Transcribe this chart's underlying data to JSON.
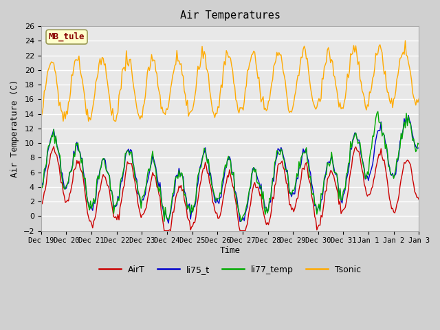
{
  "title": "Air Temperatures",
  "ylabel": "Air Temperature (C)",
  "xlabel": "Time",
  "ylim": [
    -2,
    26
  ],
  "yticks": [
    -2,
    0,
    2,
    4,
    6,
    8,
    10,
    12,
    14,
    16,
    18,
    20,
    22,
    24,
    26
  ],
  "xtick_labels": [
    "Dec 19",
    "Dec 20",
    "Dec 21",
    "Dec 22",
    "Dec 23",
    "Dec 24",
    "Dec 25",
    "Dec 26",
    "Dec 27",
    "Dec 28",
    "Dec 29",
    "Dec 30",
    "Dec 31",
    "Jan 1",
    "Jan 2",
    "Jan 3"
  ],
  "station_label": "MB_tule",
  "colors": {
    "AirT": "#cc0000",
    "li75_t": "#0000cc",
    "li77_temp": "#00aa00",
    "Tsonic": "#ffaa00"
  },
  "fig_bg_color": "#d0d0d0",
  "plot_bg_color": "#e8e8e8",
  "grid_color": "#ffffff",
  "legend_labels": [
    "AirT",
    "li75_t",
    "li77_temp",
    "Tsonic"
  ]
}
